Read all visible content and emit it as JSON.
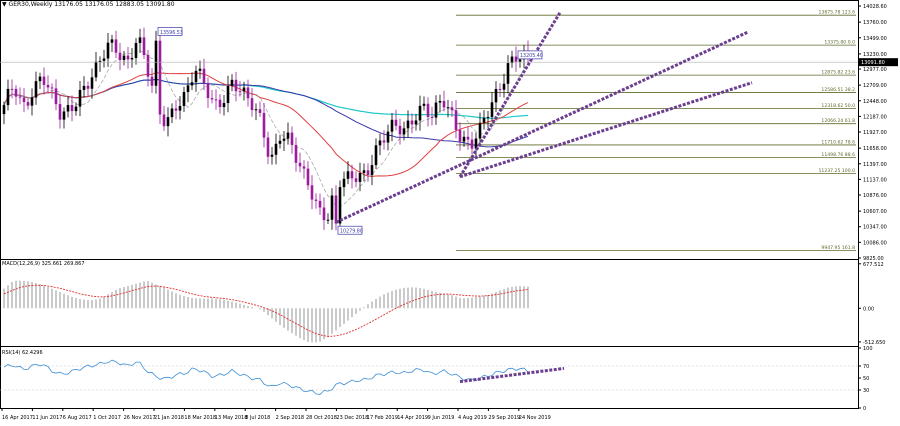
{
  "header": {
    "triangle": "▼",
    "symbol": "GER30,Weekly",
    "ohlc": "13176.05 13176.05 12883.05 13091.80"
  },
  "colors": {
    "bull": "#000000",
    "bear": "#9b1d9b",
    "ma_fast": "#aaaaaa",
    "ma_red": "#e04040",
    "ma_blue": "#3a3aa8",
    "ma_cyan": "#1ec8c8",
    "fib": "#5d6b2c",
    "trend": "#6b3e8f",
    "macd_hist": "#bdbdbd",
    "macd_signal": "#e03030",
    "rsi": "#3d8fd6"
  },
  "chart_data": [
    {
      "type": "candlestick",
      "symbol": "GER30",
      "timeframe": "Weekly",
      "ylim": [
        9825,
        14029
      ],
      "y_ticks": [
        "14028.60",
        "13760.00",
        "13499.00",
        "13230.00",
        "12977.00",
        "12709.00",
        "12448.00",
        "12187.00",
        "11927.00",
        "11658.00",
        "11397.00",
        "11137.00",
        "10876.00",
        "10607.00",
        "10347.00",
        "10086.00",
        "9825.00"
      ],
      "last_price": "13091.80",
      "close_path": [
        12300,
        12650,
        12350,
        12680,
        12900,
        12480,
        12120,
        12350,
        12640,
        12820,
        13000,
        13350,
        13300,
        13150,
        13550,
        12950,
        12300,
        12100,
        12450,
        12530,
        12900,
        12700,
        12400,
        12550,
        12780,
        12500,
        12350,
        12150,
        11500,
        11900,
        11700,
        11300,
        11100,
        10700,
        10520,
        11000,
        11100,
        11250,
        11300,
        11600,
        11800,
        12000,
        12000,
        12250,
        12350,
        12100,
        12450,
        12250,
        11900,
        11700,
        11900,
        12300,
        12700,
        13150,
        13200,
        13070
      ],
      "annotations": [
        {
          "label": "13596.53",
          "price": 13596,
          "bar": 38
        },
        {
          "label": "10279.80",
          "price": 10280,
          "bar": 83
        },
        {
          "label": "13205.40",
          "price": 13205,
          "bar": 128
        }
      ],
      "fib_levels": [
        {
          "label": "13875.78  123.6",
          "price": 13876
        },
        {
          "label": "13375.80  0.0",
          "price": 13376
        },
        {
          "label": "12875.82  23.6",
          "price": 12876
        },
        {
          "label": "12586.51  38.2",
          "price": 12587
        },
        {
          "label": "12318.62  50.0",
          "price": 12319
        },
        {
          "label": "12066.24  61.8",
          "price": 12066
        },
        {
          "label": "11710.62  78.6",
          "price": 11711
        },
        {
          "label": "11498.76  88.6",
          "price": 11499
        },
        {
          "label": "11237.25  100.0",
          "price": 11237
        },
        {
          "label": "9947.95  161.8",
          "price": 9948
        }
      ],
      "x_labels": [
        "16 Apr 2017",
        "11 Jun 2017",
        "6 Aug 2017",
        "1 Oct 2017",
        "26 Nov 2017",
        "21 Jan 2018",
        "18 Mar 2018",
        "13 May 2018",
        "8 Jul 2018",
        "2 Sep 2018",
        "28 Oct 2018",
        "23 Dec 2018",
        "17 Feb 2019",
        "14 Apr 2019",
        "9 Jun 2019",
        "4 Aug 2019",
        "29 Sep 2019",
        "24 Nov 2019"
      ]
    },
    {
      "type": "bar",
      "title": "MACD(12,26,9) 325.661 269.867",
      "y_ticks": [
        "677.512",
        "0.00",
        "-512.650"
      ],
      "ylim": [
        -560,
        720
      ],
      "histogram": [
        300,
        420,
        420,
        400,
        360,
        300,
        240,
        180,
        140,
        120,
        140,
        220,
        300,
        340,
        380,
        420,
        360,
        300,
        230,
        180,
        150,
        150,
        150,
        130,
        100,
        60,
        20,
        -20,
        -140,
        -260,
        -360,
        -450,
        -520,
        -520,
        -440,
        -320,
        -200,
        -80,
        40,
        140,
        220,
        280,
        310,
        320,
        300,
        260,
        230,
        200,
        150,
        160,
        180,
        210,
        270,
        320,
        340,
        330
      ],
      "signal": [
        220,
        280,
        330,
        350,
        350,
        330,
        300,
        260,
        220,
        190,
        170,
        180,
        210,
        250,
        290,
        330,
        340,
        320,
        290,
        250,
        210,
        180,
        165,
        150,
        130,
        100,
        65,
        25,
        -30,
        -100,
        -180,
        -260,
        -340,
        -400,
        -430,
        -420,
        -380,
        -320,
        -250,
        -170,
        -90,
        -10,
        60,
        120,
        170,
        200,
        215,
        215,
        200,
        190,
        185,
        195,
        215,
        245,
        270,
        285
      ]
    },
    {
      "type": "line",
      "title": "RSI(14) 62.4296",
      "y_ticks": [
        "100",
        "70",
        "50",
        "30",
        "0"
      ],
      "ylim": [
        0,
        100
      ],
      "values": [
        68,
        72,
        64,
        70,
        74,
        62,
        56,
        60,
        66,
        70,
        73,
        78,
        76,
        70,
        78,
        62,
        52,
        48,
        55,
        58,
        66,
        60,
        52,
        56,
        62,
        55,
        50,
        46,
        34,
        42,
        38,
        32,
        28,
        24,
        28,
        40,
        42,
        46,
        47,
        54,
        57,
        60,
        58,
        63,
        64,
        56,
        62,
        57,
        50,
        46,
        50,
        55,
        60,
        64,
        66,
        62
      ]
    }
  ]
}
